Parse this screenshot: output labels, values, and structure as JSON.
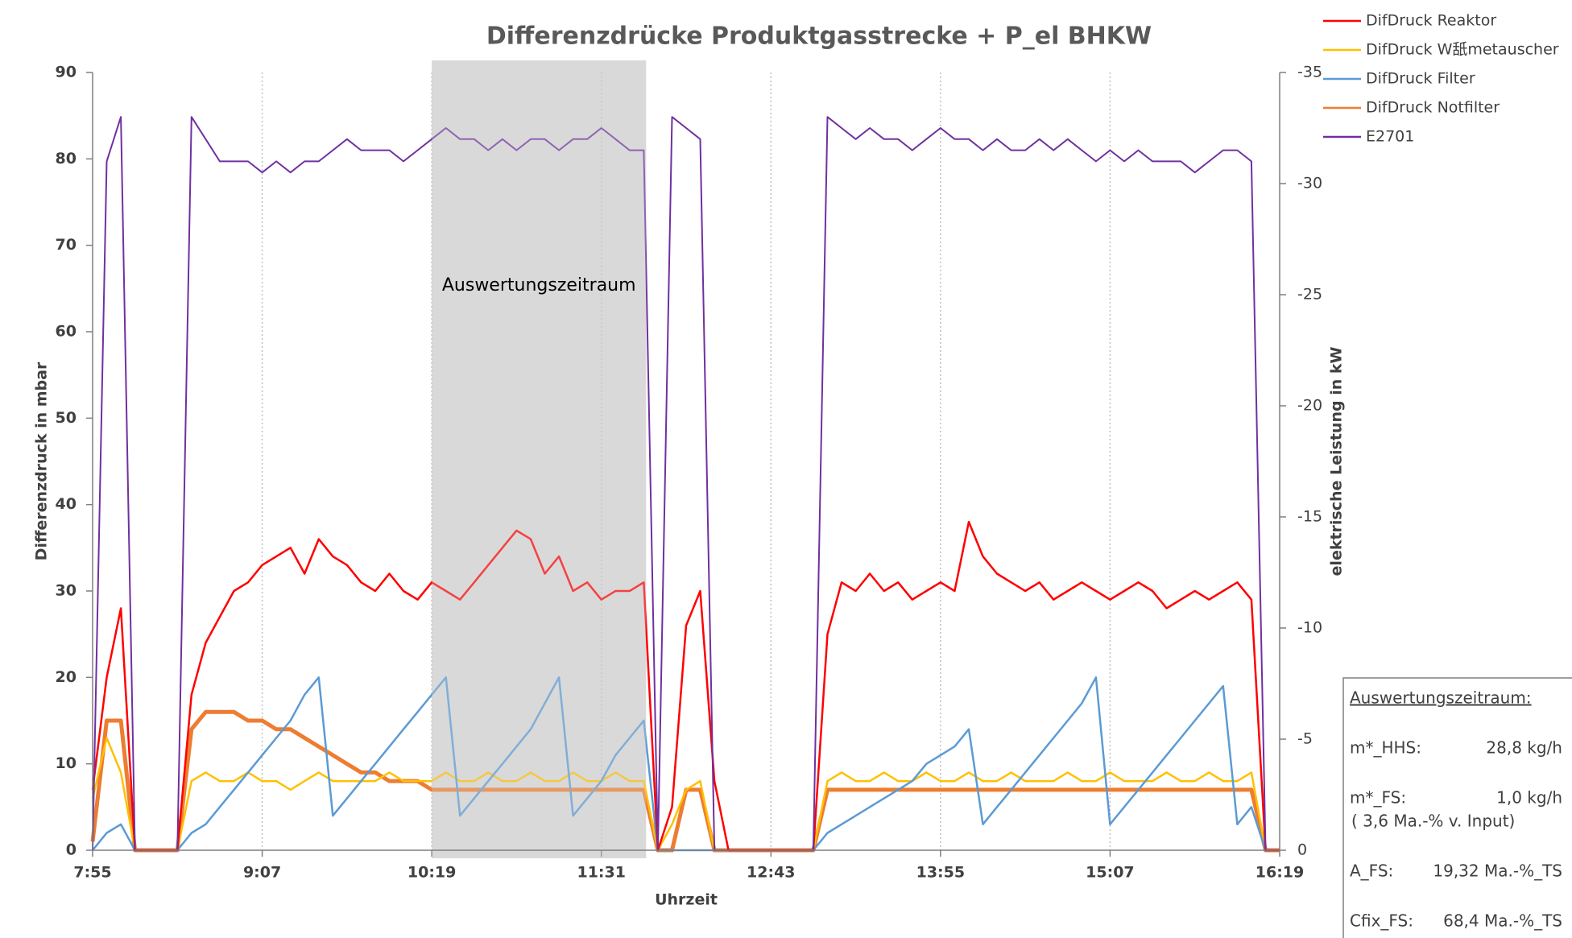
{
  "chart_data": {
    "type": "line",
    "title": "Differenzdrücke Produktgasstrecke + P_el BHKW",
    "x_label": "Uhrzeit",
    "y_label": "Differenzdruck in mbar",
    "y2_label": "elektrische Leistung in kW",
    "xlim": [
      475,
      979
    ],
    "xticks": [
      {
        "value": 475,
        "label": "7:55"
      },
      {
        "value": 547,
        "label": "9:07"
      },
      {
        "value": 619,
        "label": "10:19"
      },
      {
        "value": 691,
        "label": "11:31"
      },
      {
        "value": 763,
        "label": "12:43"
      },
      {
        "value": 835,
        "label": "13:55"
      },
      {
        "value": 907,
        "label": "15:07"
      },
      {
        "value": 979,
        "label": "16:19"
      }
    ],
    "ylim": [
      0,
      90
    ],
    "yticks": [
      0,
      10,
      20,
      30,
      40,
      50,
      60,
      70,
      80,
      90
    ],
    "y2lim": [
      0,
      -35
    ],
    "y2ticks": [
      0,
      -5,
      -10,
      -15,
      -20,
      -25,
      -30,
      -35
    ],
    "grid_x": true,
    "legend": "top-right",
    "x": [
      475,
      481,
      487,
      493,
      499,
      505,
      511,
      517,
      523,
      529,
      535,
      541,
      547,
      553,
      559,
      565,
      571,
      577,
      583,
      589,
      595,
      601,
      607,
      613,
      619,
      625,
      631,
      637,
      643,
      649,
      655,
      661,
      667,
      673,
      679,
      685,
      691,
      697,
      703,
      709,
      715,
      721,
      727,
      733,
      739,
      745,
      751,
      757,
      763,
      769,
      775,
      781,
      787,
      793,
      799,
      805,
      811,
      817,
      823,
      829,
      835,
      841,
      847,
      853,
      859,
      865,
      871,
      877,
      883,
      889,
      895,
      901,
      907,
      913,
      919,
      925,
      931,
      937,
      943,
      949,
      955,
      961,
      967,
      973,
      979
    ],
    "series": [
      {
        "name": "DifDruck Reaktor",
        "color": "#ff0000",
        "width": 2.5,
        "values": [
          7,
          20,
          28,
          0,
          0,
          0,
          0,
          18,
          24,
          27,
          30,
          31,
          33,
          34,
          35,
          32,
          36,
          34,
          33,
          31,
          30,
          32,
          30,
          29,
          31,
          30,
          29,
          31,
          33,
          35,
          37,
          36,
          32,
          34,
          30,
          31,
          29,
          30,
          30,
          31,
          0,
          5,
          26,
          30,
          8,
          0,
          0,
          0,
          0,
          0,
          0,
          0,
          25,
          31,
          30,
          32,
          30,
          31,
          29,
          30,
          31,
          30,
          38,
          34,
          32,
          31,
          30,
          31,
          29,
          30,
          31,
          30,
          29,
          30,
          31,
          30,
          28,
          29,
          30,
          29,
          30,
          31,
          29,
          0,
          0
        ]
      },
      {
        "name": "DifDruck W舐metauscher",
        "color": "#ffc000",
        "width": 2.5,
        "values": [
          6,
          13,
          9,
          0,
          0,
          0,
          0,
          8,
          9,
          8,
          8,
          9,
          8,
          8,
          7,
          8,
          9,
          8,
          8,
          8,
          8,
          9,
          8,
          8,
          8,
          9,
          8,
          8,
          9,
          8,
          8,
          9,
          8,
          8,
          9,
          8,
          8,
          9,
          8,
          8,
          0,
          3,
          7,
          8,
          0,
          0,
          0,
          0,
          0,
          0,
          0,
          0,
          8,
          9,
          8,
          8,
          9,
          8,
          8,
          9,
          8,
          8,
          9,
          8,
          8,
          9,
          8,
          8,
          8,
          9,
          8,
          8,
          9,
          8,
          8,
          8,
          9,
          8,
          8,
          9,
          8,
          8,
          9,
          0,
          0
        ]
      },
      {
        "name": "DifDruck Filter",
        "color": "#5b9bd5",
        "width": 2.5,
        "values": [
          0,
          2,
          3,
          0,
          0,
          0,
          0,
          2,
          3,
          5,
          7,
          9,
          11,
          13,
          15,
          18,
          20,
          4,
          6,
          8,
          10,
          12,
          14,
          16,
          18,
          20,
          4,
          6,
          8,
          10,
          12,
          14,
          17,
          20,
          4,
          6,
          8,
          11,
          13,
          15,
          0,
          0,
          0,
          0,
          0,
          0,
          0,
          0,
          0,
          0,
          0,
          0,
          2,
          3,
          4,
          5,
          6,
          7,
          8,
          10,
          11,
          12,
          14,
          3,
          5,
          7,
          9,
          11,
          13,
          15,
          17,
          20,
          3,
          5,
          7,
          9,
          11,
          13,
          15,
          17,
          19,
          3,
          5,
          0,
          0
        ]
      },
      {
        "name": "DifDruck Notfilter",
        "color": "#ed7d31",
        "width": 5,
        "values": [
          1,
          15,
          15,
          0,
          0,
          0,
          0,
          14,
          16,
          16,
          16,
          15,
          15,
          14,
          14,
          13,
          12,
          11,
          10,
          9,
          9,
          8,
          8,
          8,
          7,
          7,
          7,
          7,
          7,
          7,
          7,
          7,
          7,
          7,
          7,
          7,
          7,
          7,
          7,
          7,
          0,
          0,
          7,
          7,
          0,
          0,
          0,
          0,
          0,
          0,
          0,
          0,
          7,
          7,
          7,
          7,
          7,
          7,
          7,
          7,
          7,
          7,
          7,
          7,
          7,
          7,
          7,
          7,
          7,
          7,
          7,
          7,
          7,
          7,
          7,
          7,
          7,
          7,
          7,
          7,
          7,
          7,
          7,
          0,
          0
        ]
      },
      {
        "name": "E2701",
        "color": "#7030a0",
        "width": 2,
        "axis": "y2",
        "values": [
          0,
          -31,
          -33,
          0,
          0,
          0,
          0,
          -33,
          -32,
          -31,
          -31,
          -31,
          -30.5,
          -31,
          -30.5,
          -31,
          -31,
          -31.5,
          -32,
          -31.5,
          -31.5,
          -31.5,
          -31,
          -31.5,
          -32,
          -32.5,
          -32,
          -32,
          -31.5,
          -32,
          -31.5,
          -32,
          -32,
          -31.5,
          -32,
          -32,
          -32.5,
          -32,
          -31.5,
          -31.5,
          0,
          -33,
          -32.5,
          -32,
          0,
          0,
          0,
          0,
          0,
          0,
          0,
          0,
          -33,
          -32.5,
          -32,
          -32.5,
          -32,
          -32,
          -31.5,
          -32,
          -32.5,
          -32,
          -32,
          -31.5,
          -32,
          -31.5,
          -31.5,
          -32,
          -31.5,
          -32,
          -31.5,
          -31,
          -31.5,
          -31,
          -31.5,
          -31,
          -31,
          -31,
          -30.5,
          -31,
          -31.5,
          -31.5,
          -31,
          0,
          0
        ]
      }
    ],
    "annotation": {
      "text": "Auswertungszeitraum",
      "x_range": [
        619,
        710
      ],
      "color": "#d9d9d9"
    },
    "info_box": {
      "title": "Auswertungszeitraum:",
      "lines": [
        {
          "label": "m*_HHS:",
          "value": "28,8 kg/h"
        },
        {
          "label": "m*_FS:",
          "value": "1,0 kg/h",
          "note": "( 3,6 Ma.-% v. Input)"
        },
        {
          "label": "A_FS:",
          "value": "19,32 Ma.-%_TS"
        },
        {
          "label": "Cfix_FS:",
          "value": "68,4 Ma.-%_TS"
        }
      ]
    }
  }
}
